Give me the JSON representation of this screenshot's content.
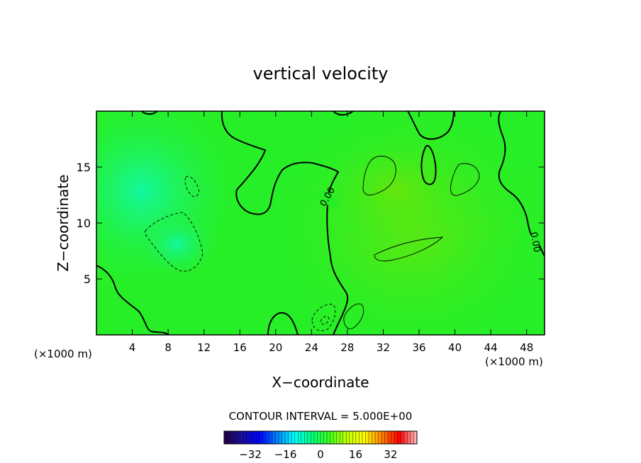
{
  "chart_data": {
    "type": "heatmap",
    "title": "vertical velocity",
    "xlabel": "X−coordinate",
    "ylabel": "Z−coordinate",
    "x_unit_left": "(×1000 m)",
    "x_unit_right": "(×1000 m)",
    "xlim": [
      0,
      50
    ],
    "ylim": [
      0,
      20
    ],
    "xticks": [
      4,
      8,
      12,
      16,
      20,
      24,
      28,
      32,
      36,
      40,
      44,
      48
    ],
    "yticks": [
      5,
      10,
      15
    ],
    "contour_interval_text": "CONTOUR INTERVAL = 5.000E+00",
    "contour_labels": [
      "0.00",
      "0.00"
    ],
    "colorbar": {
      "min": -44,
      "max": 44,
      "ticks": [
        -32,
        -16,
        0,
        16,
        32
      ],
      "tick_labels": [
        "−32",
        "−16",
        "0",
        "16",
        "32"
      ],
      "colormap": [
        "#200040",
        "#1a10a0",
        "#0000ff",
        "#0080ff",
        "#00ffff",
        "#00ff80",
        "#40ff20",
        "#c0ff00",
        "#ffff00",
        "#ff8000",
        "#ff0000",
        "#ffc0c0"
      ]
    },
    "field_colors": {
      "background": "#27ef27",
      "negative_region": "#1af572",
      "positive_region": "#4ee81c"
    }
  }
}
